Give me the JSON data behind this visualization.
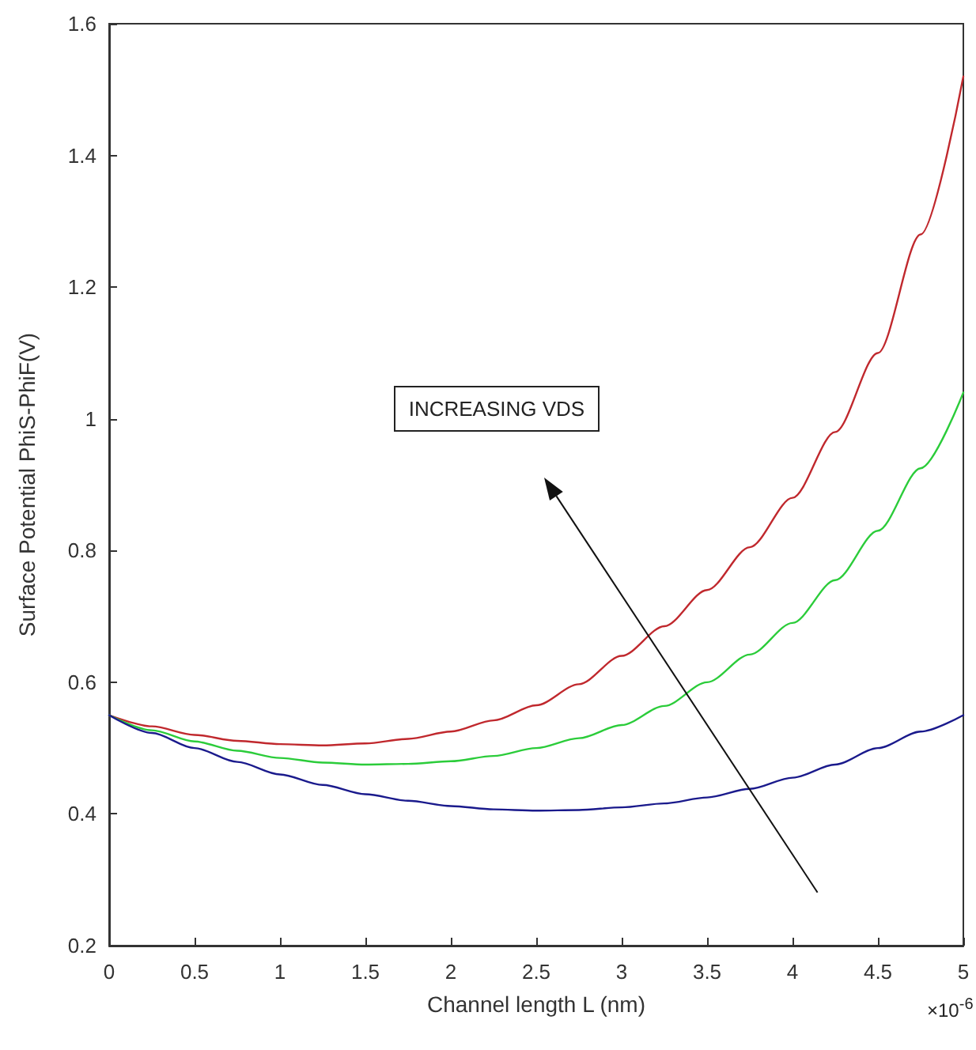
{
  "chart_data": {
    "type": "line",
    "xlabel": "Channel length L (nm)",
    "ylabel": "Surface Potential PhiS-PhiF(V)",
    "x": [
      0,
      0.25,
      0.5,
      0.75,
      1,
      1.25,
      1.5,
      1.75,
      2,
      2.25,
      2.5,
      2.75,
      3,
      3.25,
      3.5,
      3.75,
      4,
      4.25,
      4.5,
      4.75,
      5
    ],
    "series": [
      {
        "color": "#c0282d",
        "values": [
          0.55,
          0.533,
          0.52,
          0.511,
          0.506,
          0.504,
          0.507,
          0.514,
          0.525,
          0.542,
          0.565,
          0.597,
          0.64,
          0.685,
          0.74,
          0.805,
          0.88,
          0.98,
          1.1,
          1.28,
          1.52
        ]
      },
      {
        "color": "#2bcc3a",
        "values": [
          0.55,
          0.527,
          0.51,
          0.496,
          0.485,
          0.478,
          0.475,
          0.476,
          0.48,
          0.488,
          0.5,
          0.515,
          0.535,
          0.564,
          0.6,
          0.642,
          0.69,
          0.755,
          0.83,
          0.925,
          1.04
        ]
      },
      {
        "color": "#1a1a8c",
        "values": [
          0.55,
          0.523,
          0.5,
          0.479,
          0.46,
          0.444,
          0.43,
          0.42,
          0.412,
          0.407,
          0.405,
          0.406,
          0.41,
          0.416,
          0.425,
          0.438,
          0.455,
          0.475,
          0.5,
          0.525,
          0.55
        ]
      }
    ],
    "xlim": [
      0,
      5
    ],
    "xticks": [
      0,
      0.5,
      1,
      1.5,
      2,
      2.5,
      3,
      3.5,
      4,
      4.5,
      5
    ],
    "ylim": [
      0.2,
      1.6
    ],
    "yticks": [
      0.2,
      0.4,
      0.6,
      0.8,
      1,
      1.2,
      1.4,
      1.6
    ],
    "annotations": [
      "INCREASING VDS",
      "×10$^{-6}$"
    ],
    "marker": "none",
    "line_style": "solid"
  }
}
